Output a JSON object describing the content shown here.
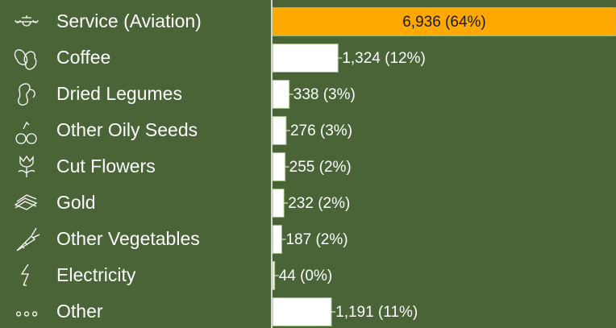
{
  "chart_data": {
    "type": "bar",
    "orientation": "horizontal",
    "categories": [
      "Service (Aviation)",
      "Coffee",
      "Dried Legumes",
      "Other Oily Seeds",
      "Cut Flowers",
      "Gold",
      "Other Vegetables",
      "Electricity",
      "Other"
    ],
    "values": [
      6936,
      1324,
      338,
      276,
      255,
      232,
      187,
      44,
      1191
    ],
    "value_labels": [
      "6,936 (64%)",
      "1,324 (12%)",
      "338 (3%)",
      "276 (3%)",
      "255 (2%)",
      "232 (2%)",
      "187 (2%)",
      "44 (0%)",
      "1,191 (11%)"
    ],
    "colors": [
      "#ffa800",
      "#ffffff",
      "#ffffff",
      "#ffffff",
      "#ffffff",
      "#ffffff",
      "#ffffff",
      "#ffffff",
      "#ffffff"
    ]
  }
}
